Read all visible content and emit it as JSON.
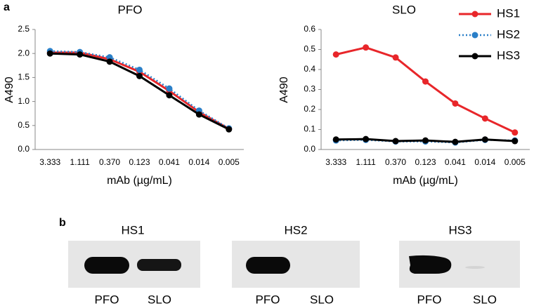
{
  "panel_labels": [
    "a",
    "b"
  ],
  "chart_data": [
    {
      "type": "line",
      "title": "PFO",
      "y_label": "A490",
      "x_label": "mAb (µg/mL)",
      "categories": [
        "3.333",
        "1.111",
        "0.370",
        "0.123",
        "0.041",
        "0.014",
        "0.005"
      ],
      "ylim": [
        0,
        2.5
      ],
      "yticks": [
        {
          "value": 0,
          "label": "0.0"
        },
        0.5,
        {
          "value": 1,
          "label": "1.0"
        },
        1.5,
        {
          "value": 2,
          "label": "2.0"
        },
        2.5
      ],
      "series": [
        {
          "color": "#e8262a",
          "dash": false,
          "values": [
            2.02,
            2.02,
            1.88,
            1.62,
            1.22,
            0.78,
            0.43
          ]
        },
        {
          "color": "#2a7fc8",
          "dash": true,
          "values": [
            2.05,
            2.03,
            1.92,
            1.66,
            1.27,
            0.81,
            0.44
          ]
        },
        {
          "color": "#000000",
          "dash": false,
          "values": [
            2.0,
            1.98,
            1.83,
            1.53,
            1.13,
            0.73,
            0.42
          ]
        }
      ]
    },
    {
      "type": "line",
      "title": "SLO",
      "y_label": "A490",
      "x_label": "mAb (µg/mL)",
      "categories": [
        "3.333",
        "1.111",
        "0.370",
        "0.123",
        "0.041",
        "0.014",
        "0.005"
      ],
      "ylim": [
        0,
        0.6
      ],
      "yticks": [
        {
          "value": 0,
          "label": "0.0"
        },
        0.1,
        0.2,
        0.3,
        0.4,
        0.5,
        0.6
      ],
      "legend": "top-right",
      "series": [
        {
          "name": "HS1",
          "color": "#e8262a",
          "dash": false,
          "values": [
            0.475,
            0.51,
            0.46,
            0.34,
            0.23,
            0.155,
            0.085
          ]
        },
        {
          "name": "HS2",
          "color": "#2a7fc8",
          "dash": true,
          "values": [
            0.045,
            0.048,
            0.04,
            0.04,
            0.035,
            0.048,
            0.045
          ]
        },
        {
          "name": "HS3",
          "color": "#000000",
          "dash": false,
          "values": [
            0.05,
            0.052,
            0.042,
            0.045,
            0.038,
            0.05,
            0.042
          ]
        }
      ]
    }
  ],
  "blots": [
    {
      "title": "HS1",
      "lanes": [
        "PFO",
        "SLO"
      ]
    },
    {
      "title": "HS2",
      "lanes": [
        "PFO",
        "SLO"
      ]
    },
    {
      "title": "HS3",
      "lanes": [
        "PFO",
        "SLO"
      ]
    }
  ]
}
